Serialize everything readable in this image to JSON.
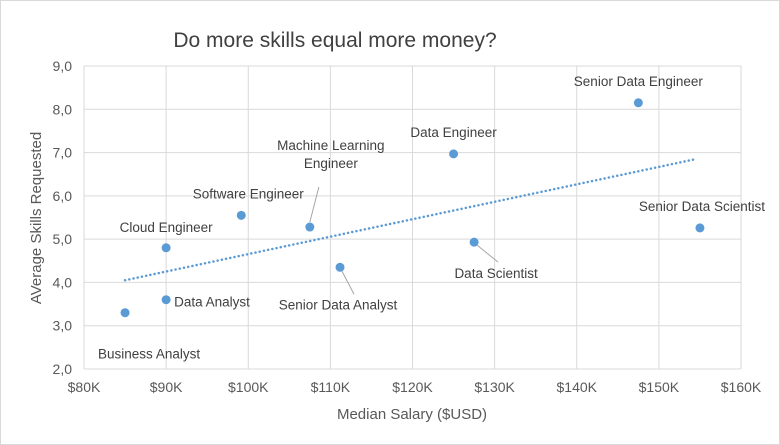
{
  "chart_data": {
    "type": "scatter",
    "title": "Do more skills equal more money?",
    "xlabel": "Median Salary ($USD)",
    "ylabel": "AVerage Skills Requested",
    "xlim": [
      80000,
      160000
    ],
    "ylim": [
      2,
      9
    ],
    "x_ticks": [
      "$80K",
      "$90K",
      "$100K",
      "$110K",
      "$120K",
      "$130K",
      "$140K",
      "$150K",
      "$160K"
    ],
    "y_ticks": [
      "2,0",
      "3,0",
      "4,0",
      "5,0",
      "6,0",
      "7,0",
      "8,0",
      "9,0"
    ],
    "grid": true,
    "trendline": {
      "type": "linear",
      "style": "dotted",
      "x_start": 85000,
      "y_start": 4.05,
      "x_end": 154500,
      "y_end": 6.85
    },
    "marker_color": "#5b9bd5",
    "points": [
      {
        "label": "Business Analyst",
        "x": 85000,
        "y": 3.3
      },
      {
        "label": "Data Analyst",
        "x": 90000,
        "y": 3.6
      },
      {
        "label": "Cloud Engineer",
        "x": 90000,
        "y": 4.8
      },
      {
        "label": "Software Engineer",
        "x": 99150,
        "y": 5.55
      },
      {
        "label": "Machine Learning Engineer",
        "x": 107500,
        "y": 5.28
      },
      {
        "label": "Senior Data Analyst",
        "x": 111175,
        "y": 4.35
      },
      {
        "label": "Data Engineer",
        "x": 125000,
        "y": 6.97
      },
      {
        "label": "Data Scientist",
        "x": 127500,
        "y": 4.93
      },
      {
        "label": "Senior Data Engineer",
        "x": 147500,
        "y": 8.15
      },
      {
        "label": "Senior Data Scientist",
        "x": 155000,
        "y": 5.26
      }
    ]
  }
}
